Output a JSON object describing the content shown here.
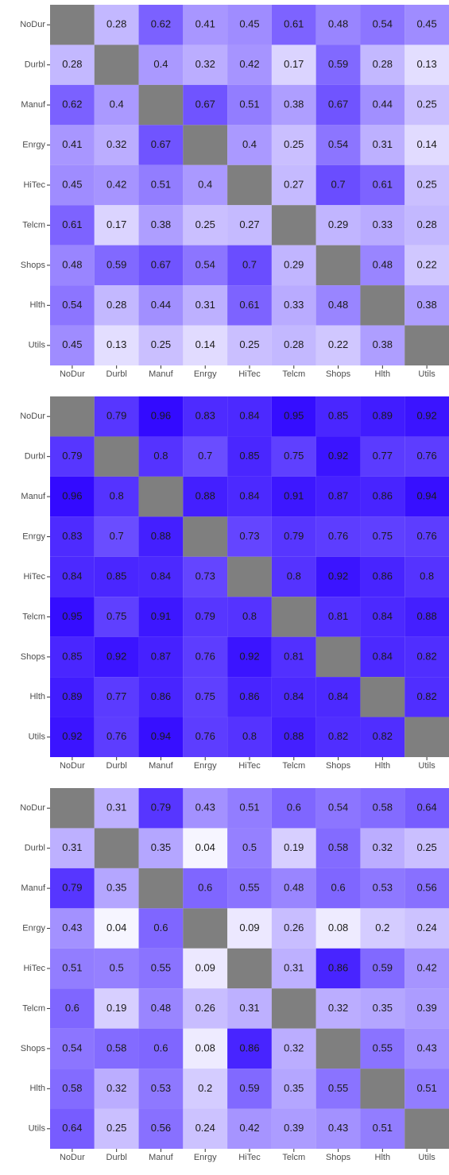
{
  "chart_data": [
    {
      "type": "heatmap",
      "low_color": "#ffffff",
      "high_color": "#2a00ff",
      "na_color": "#7f7f7f",
      "x": [
        "NoDur",
        "Durbl",
        "Manuf",
        "Enrgy",
        "HiTec",
        "Telcm",
        "Shops",
        "Hlth",
        "Utils"
      ],
      "y": [
        "NoDur",
        "Durbl",
        "Manuf",
        "Enrgy",
        "HiTec",
        "Telcm",
        "Shops",
        "Hlth",
        "Utils"
      ],
      "values": [
        [
          null,
          0.28,
          0.62,
          0.41,
          0.45,
          0.61,
          0.48,
          0.54,
          0.45
        ],
        [
          0.28,
          null,
          0.4,
          0.32,
          0.42,
          0.17,
          0.59,
          0.28,
          0.13
        ],
        [
          0.62,
          0.4,
          null,
          0.67,
          0.51,
          0.38,
          0.67,
          0.44,
          0.25
        ],
        [
          0.41,
          0.32,
          0.67,
          null,
          0.4,
          0.25,
          0.54,
          0.31,
          0.14
        ],
        [
          0.45,
          0.42,
          0.51,
          0.4,
          null,
          0.27,
          0.7,
          0.61,
          0.25
        ],
        [
          0.61,
          0.17,
          0.38,
          0.25,
          0.27,
          null,
          0.29,
          0.33,
          0.28
        ],
        [
          0.48,
          0.59,
          0.67,
          0.54,
          0.7,
          0.29,
          null,
          0.48,
          0.22
        ],
        [
          0.54,
          0.28,
          0.44,
          0.31,
          0.61,
          0.33,
          0.48,
          null,
          0.38
        ],
        [
          0.45,
          0.13,
          0.25,
          0.14,
          0.25,
          0.28,
          0.22,
          0.38,
          null
        ]
      ]
    },
    {
      "type": "heatmap",
      "low_color": "#ffffff",
      "high_color": "#2a00ff",
      "na_color": "#7f7f7f",
      "x": [
        "NoDur",
        "Durbl",
        "Manuf",
        "Enrgy",
        "HiTec",
        "Telcm",
        "Shops",
        "Hlth",
        "Utils"
      ],
      "y": [
        "NoDur",
        "Durbl",
        "Manuf",
        "Enrgy",
        "HiTec",
        "Telcm",
        "Shops",
        "Hlth",
        "Utils"
      ],
      "values": [
        [
          null,
          0.79,
          0.96,
          0.83,
          0.84,
          0.95,
          0.85,
          0.89,
          0.92
        ],
        [
          0.79,
          null,
          0.8,
          0.7,
          0.85,
          0.75,
          0.92,
          0.77,
          0.76
        ],
        [
          0.96,
          0.8,
          null,
          0.88,
          0.84,
          0.91,
          0.87,
          0.86,
          0.94
        ],
        [
          0.83,
          0.7,
          0.88,
          null,
          0.73,
          0.79,
          0.76,
          0.75,
          0.76
        ],
        [
          0.84,
          0.85,
          0.84,
          0.73,
          null,
          0.8,
          0.92,
          0.86,
          0.8
        ],
        [
          0.95,
          0.75,
          0.91,
          0.79,
          0.8,
          null,
          0.81,
          0.84,
          0.88
        ],
        [
          0.85,
          0.92,
          0.87,
          0.76,
          0.92,
          0.81,
          null,
          0.84,
          0.82
        ],
        [
          0.89,
          0.77,
          0.86,
          0.75,
          0.86,
          0.84,
          0.84,
          null,
          0.82
        ],
        [
          0.92,
          0.76,
          0.94,
          0.76,
          0.8,
          0.88,
          0.82,
          0.82,
          null
        ]
      ]
    },
    {
      "type": "heatmap",
      "low_color": "#ffffff",
      "high_color": "#2a00ff",
      "na_color": "#7f7f7f",
      "x": [
        "NoDur",
        "Durbl",
        "Manuf",
        "Enrgy",
        "HiTec",
        "Telcm",
        "Shops",
        "Hlth",
        "Utils"
      ],
      "y": [
        "NoDur",
        "Durbl",
        "Manuf",
        "Enrgy",
        "HiTec",
        "Telcm",
        "Shops",
        "Hlth",
        "Utils"
      ],
      "values": [
        [
          null,
          0.31,
          0.79,
          0.43,
          0.51,
          0.6,
          0.54,
          0.58,
          0.64
        ],
        [
          0.31,
          null,
          0.35,
          0.04,
          0.5,
          0.19,
          0.58,
          0.32,
          0.25
        ],
        [
          0.79,
          0.35,
          null,
          0.6,
          0.55,
          0.48,
          0.6,
          0.53,
          0.56
        ],
        [
          0.43,
          0.04,
          0.6,
          null,
          0.09,
          0.26,
          0.08,
          0.2,
          0.24
        ],
        [
          0.51,
          0.5,
          0.55,
          0.09,
          null,
          0.31,
          0.86,
          0.59,
          0.42
        ],
        [
          0.6,
          0.19,
          0.48,
          0.26,
          0.31,
          null,
          0.32,
          0.35,
          0.39
        ],
        [
          0.54,
          0.58,
          0.6,
          0.08,
          0.86,
          0.32,
          null,
          0.55,
          0.43
        ],
        [
          0.58,
          0.32,
          0.53,
          0.2,
          0.59,
          0.35,
          0.55,
          null,
          0.51
        ],
        [
          0.64,
          0.25,
          0.56,
          0.24,
          0.42,
          0.39,
          0.43,
          0.51,
          null
        ]
      ]
    }
  ]
}
